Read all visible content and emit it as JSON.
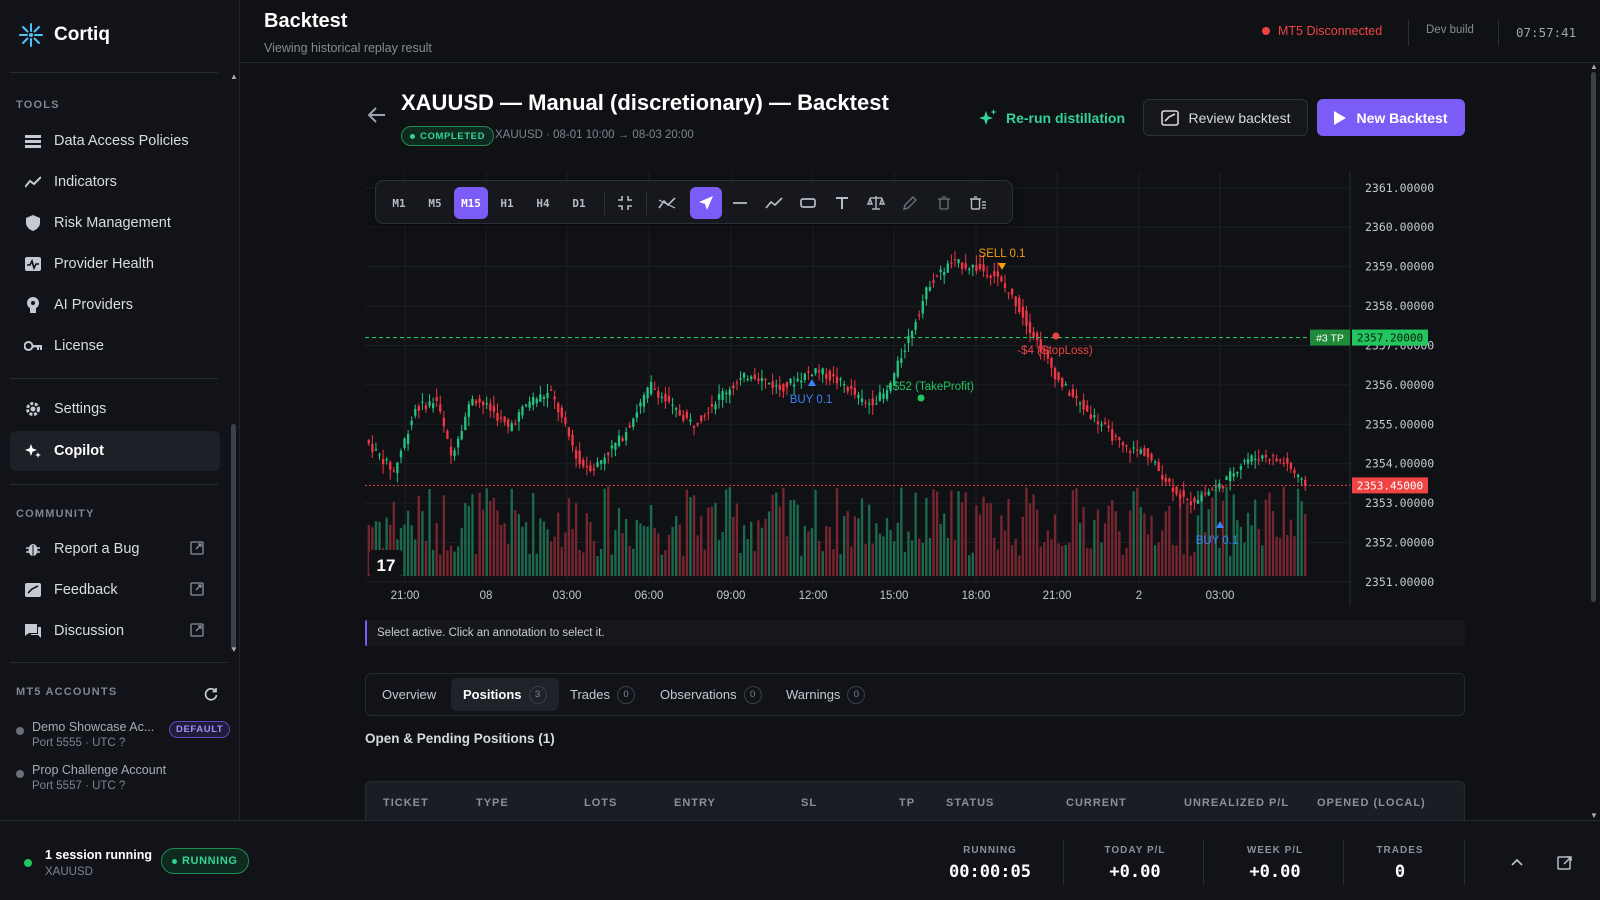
{
  "app": {
    "name": "Cortiq"
  },
  "sidebar": {
    "tools_label": "TOOLS",
    "tools": [
      {
        "label": "Data Access Policies",
        "icon": "database-icon"
      },
      {
        "label": "Indicators",
        "icon": "trend-line-icon"
      },
      {
        "label": "Risk Management",
        "icon": "shield-icon"
      },
      {
        "label": "Provider Health",
        "icon": "heartbeat-icon"
      },
      {
        "label": "AI Providers",
        "icon": "brain-icon"
      },
      {
        "label": "License",
        "icon": "key-icon"
      }
    ],
    "settings_label": "Settings",
    "copilot_label": "Copilot",
    "community_label": "COMMUNITY",
    "community": [
      {
        "label": "Report a Bug",
        "icon": "bug-icon"
      },
      {
        "label": "Feedback",
        "icon": "feedback-icon"
      },
      {
        "label": "Discussion",
        "icon": "chat-icon"
      }
    ],
    "accounts_label": "MT5 ACCOUNTS",
    "accounts": [
      {
        "name": "Demo Showcase Ac...",
        "meta": "Port 5555 · UTC ?",
        "badge": "DEFAULT"
      },
      {
        "name": "Prop Challenge Account",
        "meta": "Port 5557 · UTC ?"
      }
    ]
  },
  "header": {
    "title": "Backtest",
    "subtitle": "Viewing historical replay result",
    "mt5_status": "MT5 Disconnected",
    "build": "Dev build",
    "clock": "07:57:41",
    "status_color": "#ef4444"
  },
  "backtest": {
    "title": "XAUUSD — Manual (discretionary) — Backtest",
    "status": "COMPLETED",
    "meta": "XAUUSD · 08-01 10:00 → 08-03 20:00",
    "rerun_label": "Re-run distillation",
    "review_label": "Review backtest",
    "new_label": "New Backtest",
    "accent": "#7c5cf6"
  },
  "chart_data": {
    "type": "candlestick",
    "symbol": "XAUUSD",
    "timeframes": [
      "M1",
      "M5",
      "M15",
      "H1",
      "H4",
      "D1"
    ],
    "active_timeframe": "M15",
    "x_ticks": [
      "21:00",
      "08",
      "03:00",
      "06:00",
      "09:00",
      "12:00",
      "15:00",
      "18:00",
      "21:00",
      "2",
      "03:00"
    ],
    "y_ticks": [
      "2361.00000",
      "2360.00000",
      "2359.00000",
      "2358.00000",
      "2357.00000",
      "2356.00000",
      "2355.00000",
      "2354.00000",
      "2353.00000",
      "2352.00000",
      "2351.00000"
    ],
    "ylim": [
      2351,
      2361.4
    ],
    "tp_line": {
      "label": "#3 TP",
      "price": "2357.20000",
      "value": 2357.2
    },
    "last_price": {
      "price": "2353.45000",
      "value": 2353.45
    },
    "annotations": [
      {
        "text": "SELL 0.1",
        "kind": "sell"
      },
      {
        "text": "BUY 0.1",
        "kind": "buy"
      },
      {
        "text": "BUY 0.1",
        "kind": "buy"
      },
      {
        "text": "+$52 (TakeProfit)",
        "kind": "tp"
      },
      {
        "text": "-$4 (StopLoss)",
        "kind": "sl"
      }
    ],
    "colors": {
      "up": "#26c281",
      "down": "#f23645",
      "tp": "#22c55e",
      "sl": "#ef4444"
    }
  },
  "chart_status": "Select active. Click an annotation to select it.",
  "tabs": [
    {
      "label": "Overview"
    },
    {
      "label": "Positions",
      "count": "3"
    },
    {
      "label": "Trades",
      "count": "0"
    },
    {
      "label": "Observations",
      "count": "0"
    },
    {
      "label": "Warnings",
      "count": "0"
    }
  ],
  "positions": {
    "heading": "Open & Pending Positions (1)",
    "columns": [
      "TICKET",
      "TYPE",
      "LOTS",
      "ENTRY",
      "SL",
      "TP",
      "STATUS",
      "CURRENT",
      "UNREALIZED P/L",
      "OPENED (LOCAL)"
    ]
  },
  "footer": {
    "sessions": "1 session running",
    "symbol": "XAUUSD",
    "running_badge": "RUNNING",
    "stats": [
      {
        "label": "RUNNING",
        "value": "00:00:05"
      },
      {
        "label": "TODAY P/L",
        "value": "+0.00"
      },
      {
        "label": "WEEK P/L",
        "value": "+0.00"
      },
      {
        "label": "TRADES",
        "value": "0"
      }
    ]
  }
}
